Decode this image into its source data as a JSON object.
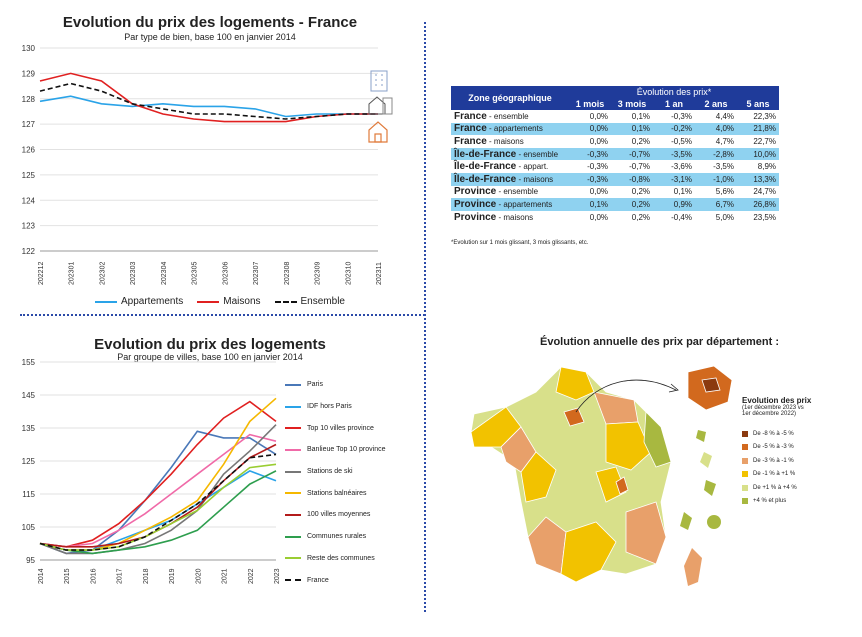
{
  "chart_data": [
    {
      "type": "line",
      "title": "Evolution du prix des logements - France",
      "subtitle": "Par type de bien, base 100 en janvier 2014",
      "x": [
        "202212",
        "202301",
        "202302",
        "202303",
        "202304",
        "202305",
        "202306",
        "202307",
        "202308",
        "202309",
        "202310",
        "202311"
      ],
      "ylim": [
        122,
        130
      ],
      "yticks": [
        122,
        123,
        124,
        125,
        126,
        127,
        128,
        129,
        130
      ],
      "grid": true,
      "legend": "bottom",
      "series": [
        {
          "name": "Appartements",
          "color": "#2aa3e8",
          "dash": false,
          "values": [
            127.9,
            128.1,
            127.8,
            127.7,
            127.8,
            127.7,
            127.7,
            127.6,
            127.3,
            127.4,
            127.4,
            127.4
          ]
        },
        {
          "name": "Maisons",
          "color": "#e02020",
          "dash": false,
          "values": [
            128.7,
            129.0,
            128.7,
            127.8,
            127.4,
            127.2,
            127.1,
            127.1,
            127.1,
            127.3,
            127.4,
            127.4
          ]
        },
        {
          "name": "Ensemble",
          "color": "#111111",
          "dash": true,
          "values": [
            128.3,
            128.6,
            128.3,
            127.8,
            127.6,
            127.4,
            127.4,
            127.3,
            127.2,
            127.3,
            127.4,
            127.4
          ]
        }
      ]
    },
    {
      "type": "table",
      "header_zone": "Zone géographique",
      "header_group": "Évolution des prix*",
      "columns": [
        "1 mois",
        "3 mois",
        "1 an",
        "2 ans",
        "5 ans"
      ],
      "rows": [
        {
          "zone": "France",
          "sub": " - ensemble",
          "cells": [
            "0,0%",
            "0,1%",
            "-0,3%",
            "4,4%",
            "22,3%"
          ]
        },
        {
          "zone": "France",
          "sub": " - appartements",
          "cells": [
            "0,0%",
            "0,1%",
            "-0,2%",
            "4,0%",
            "21,8%"
          ]
        },
        {
          "zone": "France",
          "sub": " - maisons",
          "cells": [
            "0,0%",
            "0,2%",
            "-0,5%",
            "4,7%",
            "22,7%"
          ]
        },
        {
          "zone": "Île-de-France",
          "sub": " - ensemble",
          "cells": [
            "-0,3%",
            "-0,7%",
            "-3,5%",
            "-2,8%",
            "10,0%"
          ]
        },
        {
          "zone": "Île-de-France",
          "sub": " - appart.",
          "cells": [
            "-0,3%",
            "-0,7%",
            "-3,6%",
            "-3,5%",
            "8,9%"
          ]
        },
        {
          "zone": "Île-de-France",
          "sub": " - maisons",
          "cells": [
            "-0,3%",
            "-0,8%",
            "-3,1%",
            "-1,0%",
            "13,3%"
          ]
        },
        {
          "zone": "Province",
          "sub": " - ensemble",
          "cells": [
            "0,0%",
            "0,2%",
            "0,1%",
            "5,6%",
            "24,7%"
          ]
        },
        {
          "zone": "Province",
          "sub": " - appartements",
          "cells": [
            "0,1%",
            "0,2%",
            "0,9%",
            "6,7%",
            "26,8%"
          ]
        },
        {
          "zone": "Province",
          "sub": " - maisons",
          "cells": [
            "0,0%",
            "0,2%",
            "-0,4%",
            "5,0%",
            "23,5%"
          ]
        }
      ],
      "footnote": "*Evolution sur 1 mois glissant, 3 mois glissants, etc."
    },
    {
      "type": "line",
      "title": "Evolution du prix des logements",
      "subtitle": "Par groupe de villes, base 100 en janvier 2014",
      "x": [
        "2014",
        "2015",
        "2016",
        "2017",
        "2018",
        "2019",
        "2020",
        "2021",
        "2022",
        "2023"
      ],
      "ylim": [
        95,
        155
      ],
      "yticks": [
        95,
        105,
        115,
        125,
        135,
        145,
        155
      ],
      "grid": true,
      "legend": "right",
      "series": [
        {
          "name": "Paris",
          "color": "#4a78b8",
          "dash": false,
          "values": [
            100,
            97,
            98,
            104,
            113,
            123,
            134,
            132,
            132,
            127
          ]
        },
        {
          "name": "IDF hors Paris",
          "color": "#2aa3e8",
          "dash": false,
          "values": [
            100,
            98,
            98,
            101,
            104,
            107,
            112,
            117,
            122,
            119
          ]
        },
        {
          "name": "Top 10 villes province",
          "color": "#e02020",
          "dash": false,
          "values": [
            100,
            99,
            101,
            106,
            113,
            121,
            130,
            138,
            143,
            137
          ]
        },
        {
          "name": "Banlieue Top 10 province",
          "color": "#f06aa8",
          "dash": false,
          "values": [
            100,
            99,
            100,
            104,
            109,
            115,
            121,
            127,
            133,
            131
          ]
        },
        {
          "name": "Stations de ski",
          "color": "#777777",
          "dash": false,
          "values": [
            100,
            97,
            97,
            98,
            100,
            104,
            110,
            121,
            128,
            136
          ]
        },
        {
          "name": "Stations balnéaires",
          "color": "#f5b800",
          "dash": false,
          "values": [
            100,
            98,
            98,
            100,
            104,
            108,
            113,
            124,
            137,
            144
          ]
        },
        {
          "name": "100 villes moyennes",
          "color": "#b31b1b",
          "dash": false,
          "values": [
            100,
            99,
            99,
            100,
            102,
            106,
            111,
            119,
            126,
            130
          ]
        },
        {
          "name": "Communes rurales",
          "color": "#2e9e4e",
          "dash": false,
          "values": [
            100,
            98,
            97,
            98,
            99,
            101,
            104,
            111,
            118,
            122
          ]
        },
        {
          "name": "Reste des communes",
          "color": "#9acd32",
          "dash": false,
          "values": [
            100,
            98,
            98,
            99,
            102,
            106,
            110,
            117,
            123,
            124
          ]
        },
        {
          "name": "France",
          "color": "#111111",
          "dash": true,
          "values": [
            100,
            98,
            98,
            99,
            102,
            107,
            112,
            119,
            126,
            127
          ]
        }
      ]
    }
  ],
  "map": {
    "title": "Évolution annuelle des prix par département :",
    "legend_title": "Evolution des prix",
    "legend_subtitle_1": "(1er décembre 2023 vs",
    "legend_subtitle_2": "1er décembre 2022)",
    "legend_items": [
      {
        "label": "De -8 % à -5 %",
        "color": "#8b3a0f"
      },
      {
        "label": "De -5 % à -3 %",
        "color": "#d2691e"
      },
      {
        "label": "De -3 % à -1 %",
        "color": "#e8a06a"
      },
      {
        "label": "De -1 % à +1 %",
        "color": "#f2c200"
      },
      {
        "label": "De +1 % à +4 %",
        "color": "#d8e08a"
      },
      {
        "label": "+4 % et plus",
        "color": "#a8b840"
      }
    ]
  },
  "icons": [
    "building-icon",
    "apartment-house-icon",
    "house-icon"
  ]
}
